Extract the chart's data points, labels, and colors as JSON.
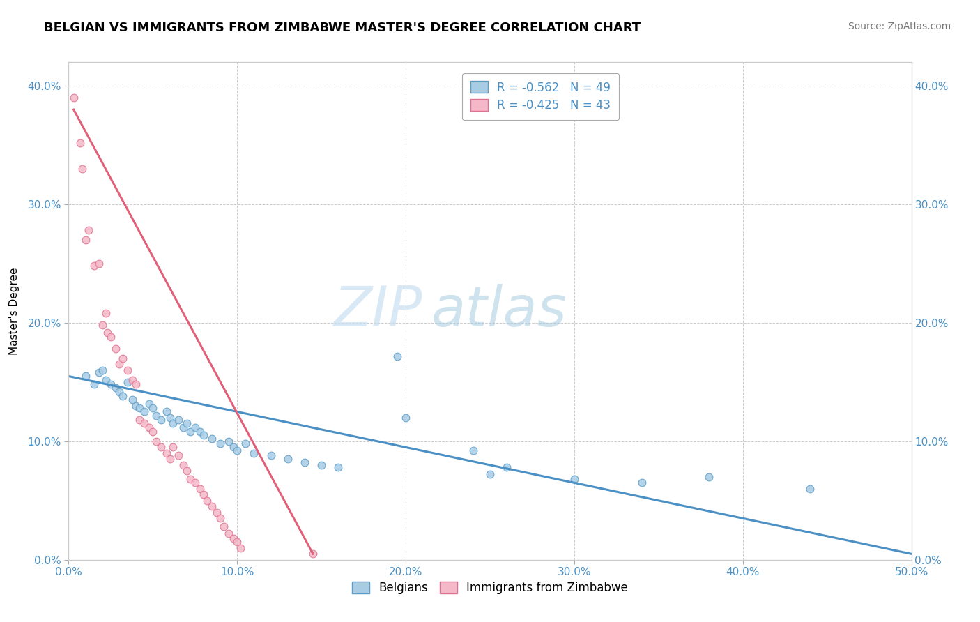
{
  "title": "BELGIAN VS IMMIGRANTS FROM ZIMBABWE MASTER'S DEGREE CORRELATION CHART",
  "source": "Source: ZipAtlas.com",
  "ylabel": "Master's Degree",
  "xlabel": "",
  "xlim": [
    0.0,
    0.5
  ],
  "ylim": [
    0.0,
    0.42
  ],
  "xticks": [
    0.0,
    0.1,
    0.2,
    0.3,
    0.4,
    0.5
  ],
  "yticks": [
    0.0,
    0.1,
    0.2,
    0.3,
    0.4
  ],
  "xticklabels": [
    "0.0%",
    "10.0%",
    "20.0%",
    "30.0%",
    "40.0%",
    "50.0%"
  ],
  "yticklabels": [
    "0.0%",
    "10.0%",
    "20.0%",
    "30.0%",
    "40.0%"
  ],
  "blue_color": "#a8cce4",
  "blue_edge_color": "#5b9dc9",
  "pink_color": "#f4b8c8",
  "pink_edge_color": "#e07090",
  "blue_line_color": "#4a90c4",
  "pink_line_color": "#e0607a",
  "watermark_zip": "ZIP",
  "watermark_atlas": "atlas",
  "blue_scatter": [
    [
      0.01,
      0.155
    ],
    [
      0.015,
      0.148
    ],
    [
      0.018,
      0.158
    ],
    [
      0.02,
      0.16
    ],
    [
      0.022,
      0.152
    ],
    [
      0.025,
      0.148
    ],
    [
      0.028,
      0.145
    ],
    [
      0.03,
      0.142
    ],
    [
      0.032,
      0.138
    ],
    [
      0.035,
      0.15
    ],
    [
      0.038,
      0.135
    ],
    [
      0.04,
      0.13
    ],
    [
      0.042,
      0.128
    ],
    [
      0.045,
      0.125
    ],
    [
      0.048,
      0.132
    ],
    [
      0.05,
      0.128
    ],
    [
      0.052,
      0.122
    ],
    [
      0.055,
      0.118
    ],
    [
      0.058,
      0.125
    ],
    [
      0.06,
      0.12
    ],
    [
      0.062,
      0.115
    ],
    [
      0.065,
      0.118
    ],
    [
      0.068,
      0.112
    ],
    [
      0.07,
      0.115
    ],
    [
      0.072,
      0.108
    ],
    [
      0.075,
      0.112
    ],
    [
      0.078,
      0.108
    ],
    [
      0.08,
      0.105
    ],
    [
      0.085,
      0.102
    ],
    [
      0.09,
      0.098
    ],
    [
      0.095,
      0.1
    ],
    [
      0.098,
      0.095
    ],
    [
      0.1,
      0.092
    ],
    [
      0.105,
      0.098
    ],
    [
      0.11,
      0.09
    ],
    [
      0.12,
      0.088
    ],
    [
      0.13,
      0.085
    ],
    [
      0.14,
      0.082
    ],
    [
      0.15,
      0.08
    ],
    [
      0.16,
      0.078
    ],
    [
      0.195,
      0.172
    ],
    [
      0.2,
      0.12
    ],
    [
      0.24,
      0.092
    ],
    [
      0.25,
      0.072
    ],
    [
      0.26,
      0.078
    ],
    [
      0.3,
      0.068
    ],
    [
      0.34,
      0.065
    ],
    [
      0.38,
      0.07
    ],
    [
      0.44,
      0.06
    ]
  ],
  "pink_scatter": [
    [
      0.003,
      0.39
    ],
    [
      0.007,
      0.352
    ],
    [
      0.008,
      0.33
    ],
    [
      0.01,
      0.27
    ],
    [
      0.012,
      0.278
    ],
    [
      0.015,
      0.248
    ],
    [
      0.018,
      0.25
    ],
    [
      0.02,
      0.198
    ],
    [
      0.022,
      0.208
    ],
    [
      0.023,
      0.192
    ],
    [
      0.025,
      0.188
    ],
    [
      0.028,
      0.178
    ],
    [
      0.03,
      0.165
    ],
    [
      0.032,
      0.17
    ],
    [
      0.035,
      0.16
    ],
    [
      0.038,
      0.152
    ],
    [
      0.04,
      0.148
    ],
    [
      0.042,
      0.118
    ],
    [
      0.045,
      0.115
    ],
    [
      0.048,
      0.112
    ],
    [
      0.05,
      0.108
    ],
    [
      0.052,
      0.1
    ],
    [
      0.055,
      0.095
    ],
    [
      0.058,
      0.09
    ],
    [
      0.06,
      0.085
    ],
    [
      0.062,
      0.095
    ],
    [
      0.065,
      0.088
    ],
    [
      0.068,
      0.08
    ],
    [
      0.07,
      0.075
    ],
    [
      0.072,
      0.068
    ],
    [
      0.075,
      0.065
    ],
    [
      0.078,
      0.06
    ],
    [
      0.08,
      0.055
    ],
    [
      0.082,
      0.05
    ],
    [
      0.085,
      0.045
    ],
    [
      0.088,
      0.04
    ],
    [
      0.09,
      0.035
    ],
    [
      0.092,
      0.028
    ],
    [
      0.095,
      0.022
    ],
    [
      0.098,
      0.018
    ],
    [
      0.1,
      0.015
    ],
    [
      0.102,
      0.01
    ],
    [
      0.145,
      0.005
    ]
  ],
  "title_fontsize": 13,
  "axis_label_fontsize": 11,
  "tick_fontsize": 11,
  "source_fontsize": 10,
  "blue_line_start_x": 0.0,
  "blue_line_start_y": 0.155,
  "blue_line_end_x": 0.5,
  "blue_line_end_y": 0.005,
  "pink_line_start_x": 0.003,
  "pink_line_start_y": 0.38,
  "pink_line_end_x": 0.145,
  "pink_line_end_y": 0.005
}
